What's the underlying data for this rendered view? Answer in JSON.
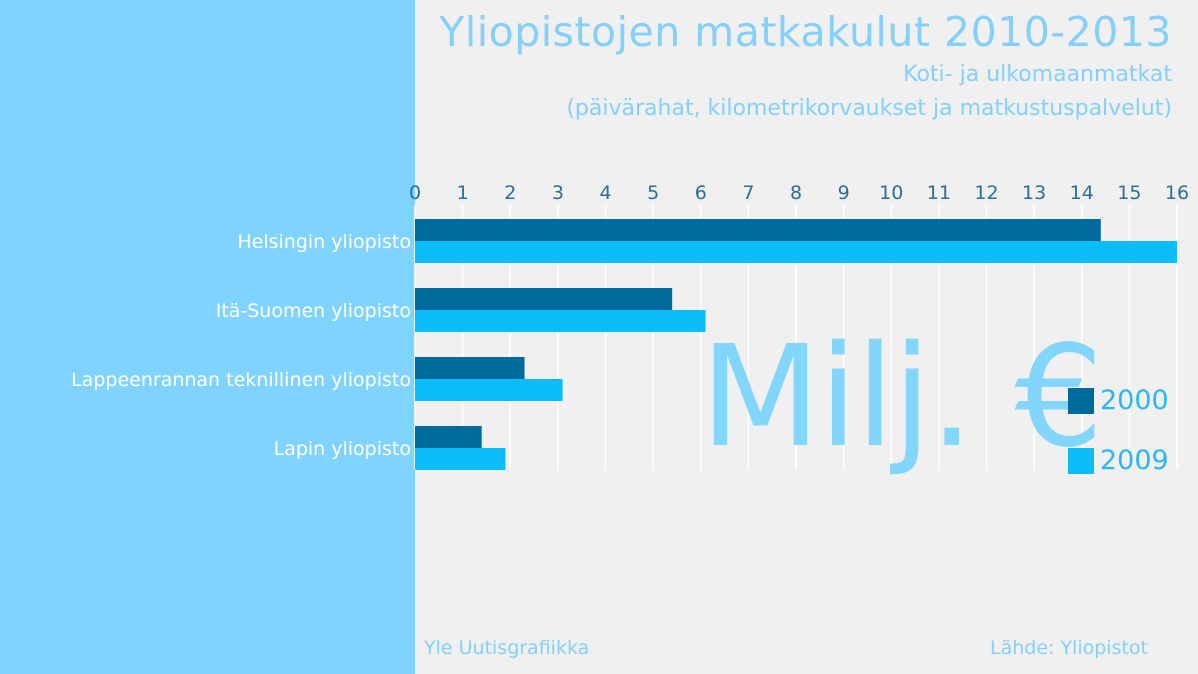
{
  "title": "Yliopistojen matkakulut 2010-2013",
  "subtitle_1": "Koti- ja ulkomaanmatkat",
  "subtitle_2": "(päivärahat, kilometrikorvaukset ja matkustuspalvelut)",
  "unit": "Milj. €",
  "footer_left": "Yle Uutisgrafiikka",
  "footer_right": "Lähde: Yliopistot",
  "colors": {
    "left_panel": "#80d3ff",
    "series_2000": "#006a9c",
    "series_2009": "#0bbdfb",
    "background": "#f0f0f0"
  },
  "chart_data": {
    "type": "bar",
    "orientation": "horizontal",
    "title": "Yliopistojen matkakulut 2010-2013",
    "categories": [
      "Helsingin yliopisto",
      "Itä-Suomen yliopisto",
      "Lappeenrannan teknillinen yliopisto",
      "Lapin yliopisto"
    ],
    "series": [
      {
        "name": "2000",
        "color": "#006a9c",
        "values": [
          14.4,
          5.4,
          2.3,
          1.4
        ]
      },
      {
        "name": "2009",
        "color": "#0bbdfb",
        "values": [
          16.0,
          6.1,
          3.1,
          1.9
        ]
      }
    ],
    "xlim": [
      0,
      16
    ],
    "xticks": [
      0,
      1,
      2,
      3,
      4,
      5,
      6,
      7,
      8,
      9,
      10,
      11,
      12,
      13,
      14,
      15,
      16
    ],
    "xaxis_position": "top",
    "grid": true,
    "legend_position": "right"
  }
}
